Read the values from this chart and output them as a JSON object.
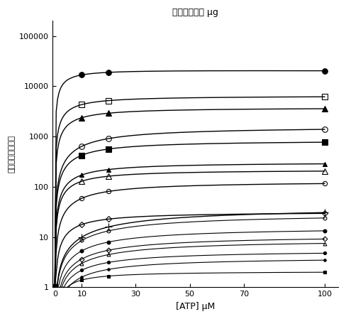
{
  "title": "たんぱく質５ μg",
  "xlabel": "[ATP] μM",
  "ylabel": "規格化された活性",
  "xdata": [
    0,
    10,
    20,
    100
  ],
  "series": [
    {
      "name": "filled_circle_top",
      "marker": "o",
      "filled": true,
      "markersize": 6,
      "values": [
        1,
        9000,
        20000,
        6000
      ]
    },
    {
      "name": "open_square",
      "marker": "s",
      "filled": false,
      "markersize": 6,
      "values": [
        1,
        1300,
        3000,
        6000
      ]
    },
    {
      "name": "filled_triangle_up",
      "marker": "^",
      "filled": true,
      "markersize": 6,
      "values": [
        1,
        300,
        700,
        3500
      ]
    },
    {
      "name": "open_circle_large",
      "marker": "o",
      "filled": false,
      "markersize": 6,
      "values": [
        1,
        50,
        100,
        1500
      ]
    },
    {
      "name": "filled_square_large",
      "marker": "s",
      "filled": true,
      "markersize": 6,
      "values": [
        1,
        40,
        80,
        800
      ]
    },
    {
      "name": "filled_triangle_up2",
      "marker": "^",
      "filled": true,
      "markersize": 5,
      "values": [
        1,
        200,
        280,
        300
      ]
    },
    {
      "name": "open_triangle_up",
      "marker": "^",
      "filled": false,
      "markersize": 6,
      "values": [
        1,
        130,
        200,
        200
      ]
    },
    {
      "name": "open_circle_sm",
      "marker": "o",
      "filled": false,
      "markersize": 5,
      "values": [
        1,
        30,
        50,
        120
      ]
    },
    {
      "name": "open_diamond",
      "marker": "D",
      "filled": false,
      "markersize": 5,
      "values": [
        1,
        20,
        25,
        30
      ]
    },
    {
      "name": "cross_plus",
      "marker": "+",
      "filled": true,
      "markersize": 7,
      "values": [
        1,
        7,
        8,
        35
      ]
    },
    {
      "name": "open_circle_xs",
      "marker": "o",
      "filled": false,
      "markersize": 4,
      "values": [
        1,
        7,
        8,
        28
      ]
    },
    {
      "name": "filled_circle_sm",
      "marker": "o",
      "filled": true,
      "markersize": 4,
      "values": [
        1,
        6,
        7,
        15
      ]
    },
    {
      "name": "open_diamond_sm",
      "marker": "D",
      "filled": false,
      "markersize": 4,
      "values": [
        1,
        5.5,
        6.5,
        10
      ]
    },
    {
      "name": "open_triangle_sm",
      "marker": "^",
      "filled": false,
      "markersize": 4,
      "values": [
        1,
        5,
        6,
        8
      ]
    },
    {
      "name": "filled_circle_xs",
      "marker": "o",
      "filled": true,
      "markersize": 3,
      "values": [
        1,
        4.5,
        5,
        5
      ]
    },
    {
      "name": "filled_circle_micro",
      "marker": "o",
      "filled": true,
      "markersize": 3,
      "values": [
        1,
        4,
        4.5,
        3.5
      ]
    },
    {
      "name": "filled_square_tiny",
      "marker": "s",
      "filled": true,
      "markersize": 4,
      "values": [
        1,
        1.8,
        1.9,
        2.0
      ]
    }
  ],
  "xlim": [
    -1,
    105
  ],
  "ylim": [
    1,
    200000
  ],
  "xticks": [
    0,
    10,
    30,
    50,
    70,
    100
  ],
  "yticks": [
    1,
    10,
    100,
    1000,
    10000,
    100000
  ]
}
